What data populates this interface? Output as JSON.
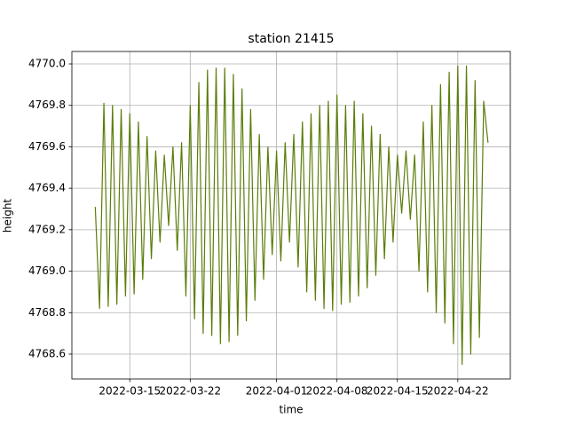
{
  "chart_data": {
    "type": "line",
    "title": "station 21415",
    "x_label": "time",
    "y_label": "height",
    "x": [
      "2022-03-11 00:00",
      "2022-03-11 12:00",
      "2022-03-12 00:00",
      "2022-03-12 12:00",
      "2022-03-13 00:00",
      "2022-03-13 12:00",
      "2022-03-14 00:00",
      "2022-03-14 12:00",
      "2022-03-15 00:00",
      "2022-03-15 12:00",
      "2022-03-16 00:00",
      "2022-03-16 12:00",
      "2022-03-17 00:00",
      "2022-03-17 12:00",
      "2022-03-18 00:00",
      "2022-03-18 12:00",
      "2022-03-19 00:00",
      "2022-03-19 12:00",
      "2022-03-20 00:00",
      "2022-03-20 12:00",
      "2022-03-21 00:00",
      "2022-03-21 12:00",
      "2022-03-22 00:00",
      "2022-03-22 12:00",
      "2022-03-23 00:00",
      "2022-03-23 12:00",
      "2022-03-24 00:00",
      "2022-03-24 12:00",
      "2022-03-25 00:00",
      "2022-03-25 12:00",
      "2022-03-26 00:00",
      "2022-03-26 12:00",
      "2022-03-27 00:00",
      "2022-03-27 12:00",
      "2022-03-28 00:00",
      "2022-03-28 12:00",
      "2022-03-29 00:00",
      "2022-03-29 12:00",
      "2022-03-30 00:00",
      "2022-03-30 12:00",
      "2022-03-31 00:00",
      "2022-03-31 12:00",
      "2022-04-01 00:00",
      "2022-04-01 12:00",
      "2022-04-02 00:00",
      "2022-04-02 12:00",
      "2022-04-03 00:00",
      "2022-04-03 12:00",
      "2022-04-04 00:00",
      "2022-04-04 12:00",
      "2022-04-05 00:00",
      "2022-04-05 12:00",
      "2022-04-06 00:00",
      "2022-04-06 12:00",
      "2022-04-07 00:00",
      "2022-04-07 12:00",
      "2022-04-08 00:00",
      "2022-04-08 12:00",
      "2022-04-09 00:00",
      "2022-04-09 12:00",
      "2022-04-10 00:00",
      "2022-04-10 12:00",
      "2022-04-11 00:00",
      "2022-04-11 12:00",
      "2022-04-12 00:00",
      "2022-04-12 12:00",
      "2022-04-13 00:00",
      "2022-04-13 12:00",
      "2022-04-14 00:00",
      "2022-04-14 12:00",
      "2022-04-15 00:00",
      "2022-04-15 12:00",
      "2022-04-16 00:00",
      "2022-04-16 12:00",
      "2022-04-17 00:00",
      "2022-04-17 12:00",
      "2022-04-18 00:00",
      "2022-04-18 12:00",
      "2022-04-19 00:00",
      "2022-04-19 12:00",
      "2022-04-20 00:00",
      "2022-04-20 12:00",
      "2022-04-21 00:00",
      "2022-04-21 12:00",
      "2022-04-22 00:00",
      "2022-04-22 12:00",
      "2022-04-23 00:00",
      "2022-04-23 12:00",
      "2022-04-24 00:00",
      "2022-04-24 12:00",
      "2022-04-25 00:00",
      "2022-04-25 12:00"
    ],
    "values": [
      4769.31,
      4768.82,
      4769.81,
      4768.83,
      4769.8,
      4768.84,
      4769.78,
      4768.88,
      4769.76,
      4768.89,
      4769.72,
      4768.96,
      4769.65,
      4769.06,
      4769.58,
      4769.14,
      4769.56,
      4769.22,
      4769.6,
      4769.1,
      4769.62,
      4768.88,
      4769.8,
      4768.77,
      4769.91,
      4768.7,
      4769.97,
      4768.69,
      4769.98,
      4768.65,
      4769.98,
      4768.66,
      4769.95,
      4768.69,
      4769.88,
      4768.76,
      4769.78,
      4768.86,
      4769.66,
      4768.96,
      4769.6,
      4769.08,
      4769.58,
      4769.05,
      4769.62,
      4769.14,
      4769.66,
      4769.02,
      4769.72,
      4768.9,
      4769.76,
      4768.86,
      4769.8,
      4768.82,
      4769.82,
      4768.81,
      4769.85,
      4768.84,
      4769.8,
      4768.85,
      4769.82,
      4768.88,
      4769.76,
      4768.92,
      4769.7,
      4768.98,
      4769.66,
      4769.06,
      4769.6,
      4769.14,
      4769.56,
      4769.28,
      4769.58,
      4769.25,
      4769.56,
      4769.0,
      4769.72,
      4768.9,
      4769.8,
      4768.8,
      4769.9,
      4768.75,
      4769.96,
      4768.65,
      4769.99,
      4768.55,
      4769.99,
      4768.6,
      4769.92,
      4768.68,
      4769.82,
      4769.62
    ],
    "color": "#5b7d0a",
    "xlim": [
      "2022-03-08 07:00",
      "2022-04-28 02:00"
    ],
    "xticks": [
      "2022-03-15",
      "2022-03-22",
      "2022-04-01",
      "2022-04-08",
      "2022-04-15",
      "2022-04-22"
    ],
    "ylim": [
      4768.48,
      4770.06
    ],
    "yticks": [
      4768.6,
      4768.8,
      {
        "value": 4769,
        "label": "4769.0"
      },
      4769.2,
      4769.4,
      4769.6,
      4769.8,
      {
        "value": 4770,
        "label": "4770.0"
      }
    ],
    "grid": true
  }
}
